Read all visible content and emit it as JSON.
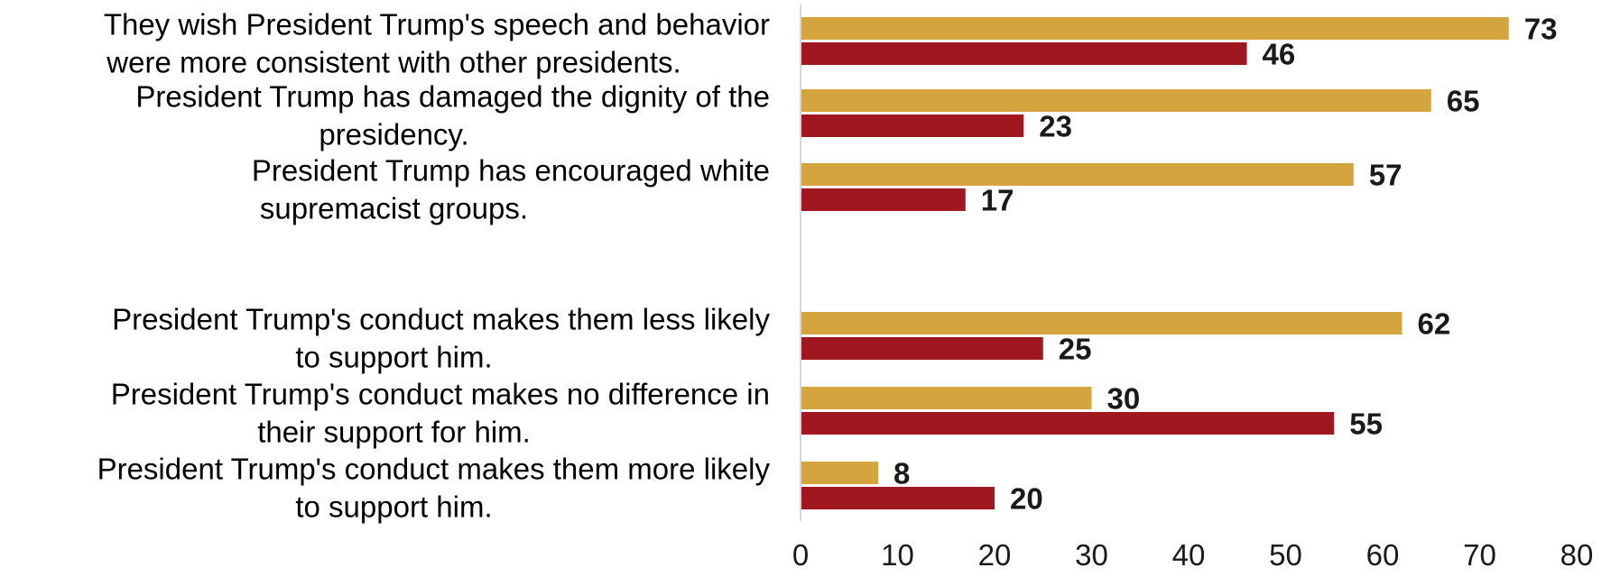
{
  "chart_data": {
    "type": "bar",
    "orientation": "horizontal",
    "categories": [
      "They wish President Trump's speech and behavior were more consistent with other presidents.",
      "President Trump has damaged the dignity of the presidency.",
      "President Trump has encouraged white supremacist groups.",
      "President Trump's conduct makes them less likely to support him.",
      "President Trump's conduct makes no difference in their support for him.",
      "President Trump's conduct makes them more likely to support him."
    ],
    "category_lines": [
      [
        "They wish President Trump's speech and behavior",
        "were more consistent with other presidents."
      ],
      [
        "President Trump has damaged the dignity of the",
        "presidency."
      ],
      [
        "President Trump has encouraged white",
        "supremacist groups."
      ],
      [
        "President Trump's conduct makes them less likely",
        "to support him."
      ],
      [
        "President Trump's conduct makes no difference in",
        "their support for him."
      ],
      [
        "President Trump's conduct makes them more likely",
        "to support him."
      ]
    ],
    "series": [
      {
        "color": "#D4A53F",
        "values": [
          73,
          65,
          57,
          62,
          30,
          8
        ]
      },
      {
        "color": "#A0171F",
        "values": [
          46,
          23,
          17,
          25,
          55,
          20
        ]
      }
    ],
    "xlim": [
      0,
      80
    ],
    "xticks": [
      0,
      10,
      20,
      30,
      40,
      50,
      60,
      70,
      80
    ],
    "grid": false,
    "legend": "none"
  }
}
